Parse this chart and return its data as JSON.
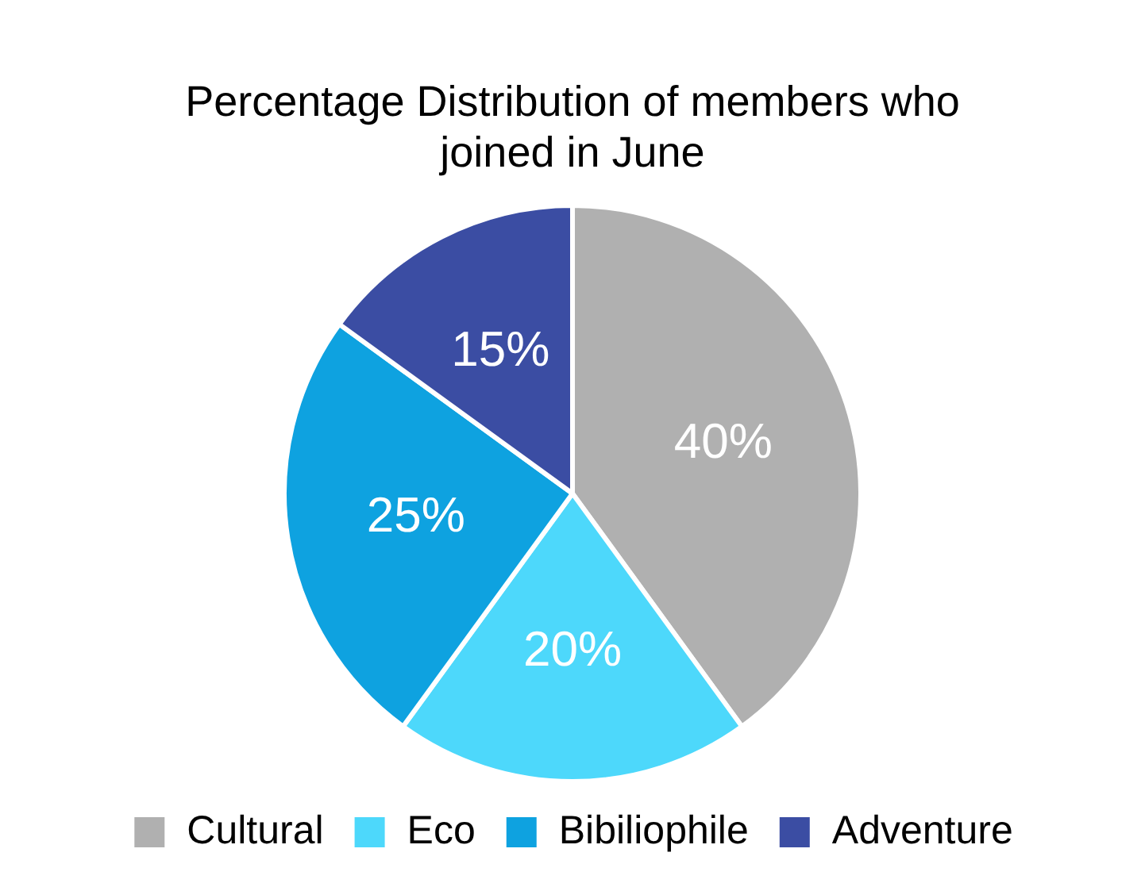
{
  "chart_data": {
    "type": "pie",
    "title": "Percentage Distribution of members who joined in June",
    "categories": [
      "Cultural",
      "Eco",
      "Bibiliophile",
      "Adventure"
    ],
    "values": [
      40,
      20,
      25,
      15
    ],
    "colors": [
      "#b0b0b0",
      "#4dd8fb",
      "#0ea2e0",
      "#3b4da3"
    ],
    "value_labels": [
      "40%",
      "20%",
      "25%",
      "15%"
    ],
    "legend": "bottom"
  }
}
